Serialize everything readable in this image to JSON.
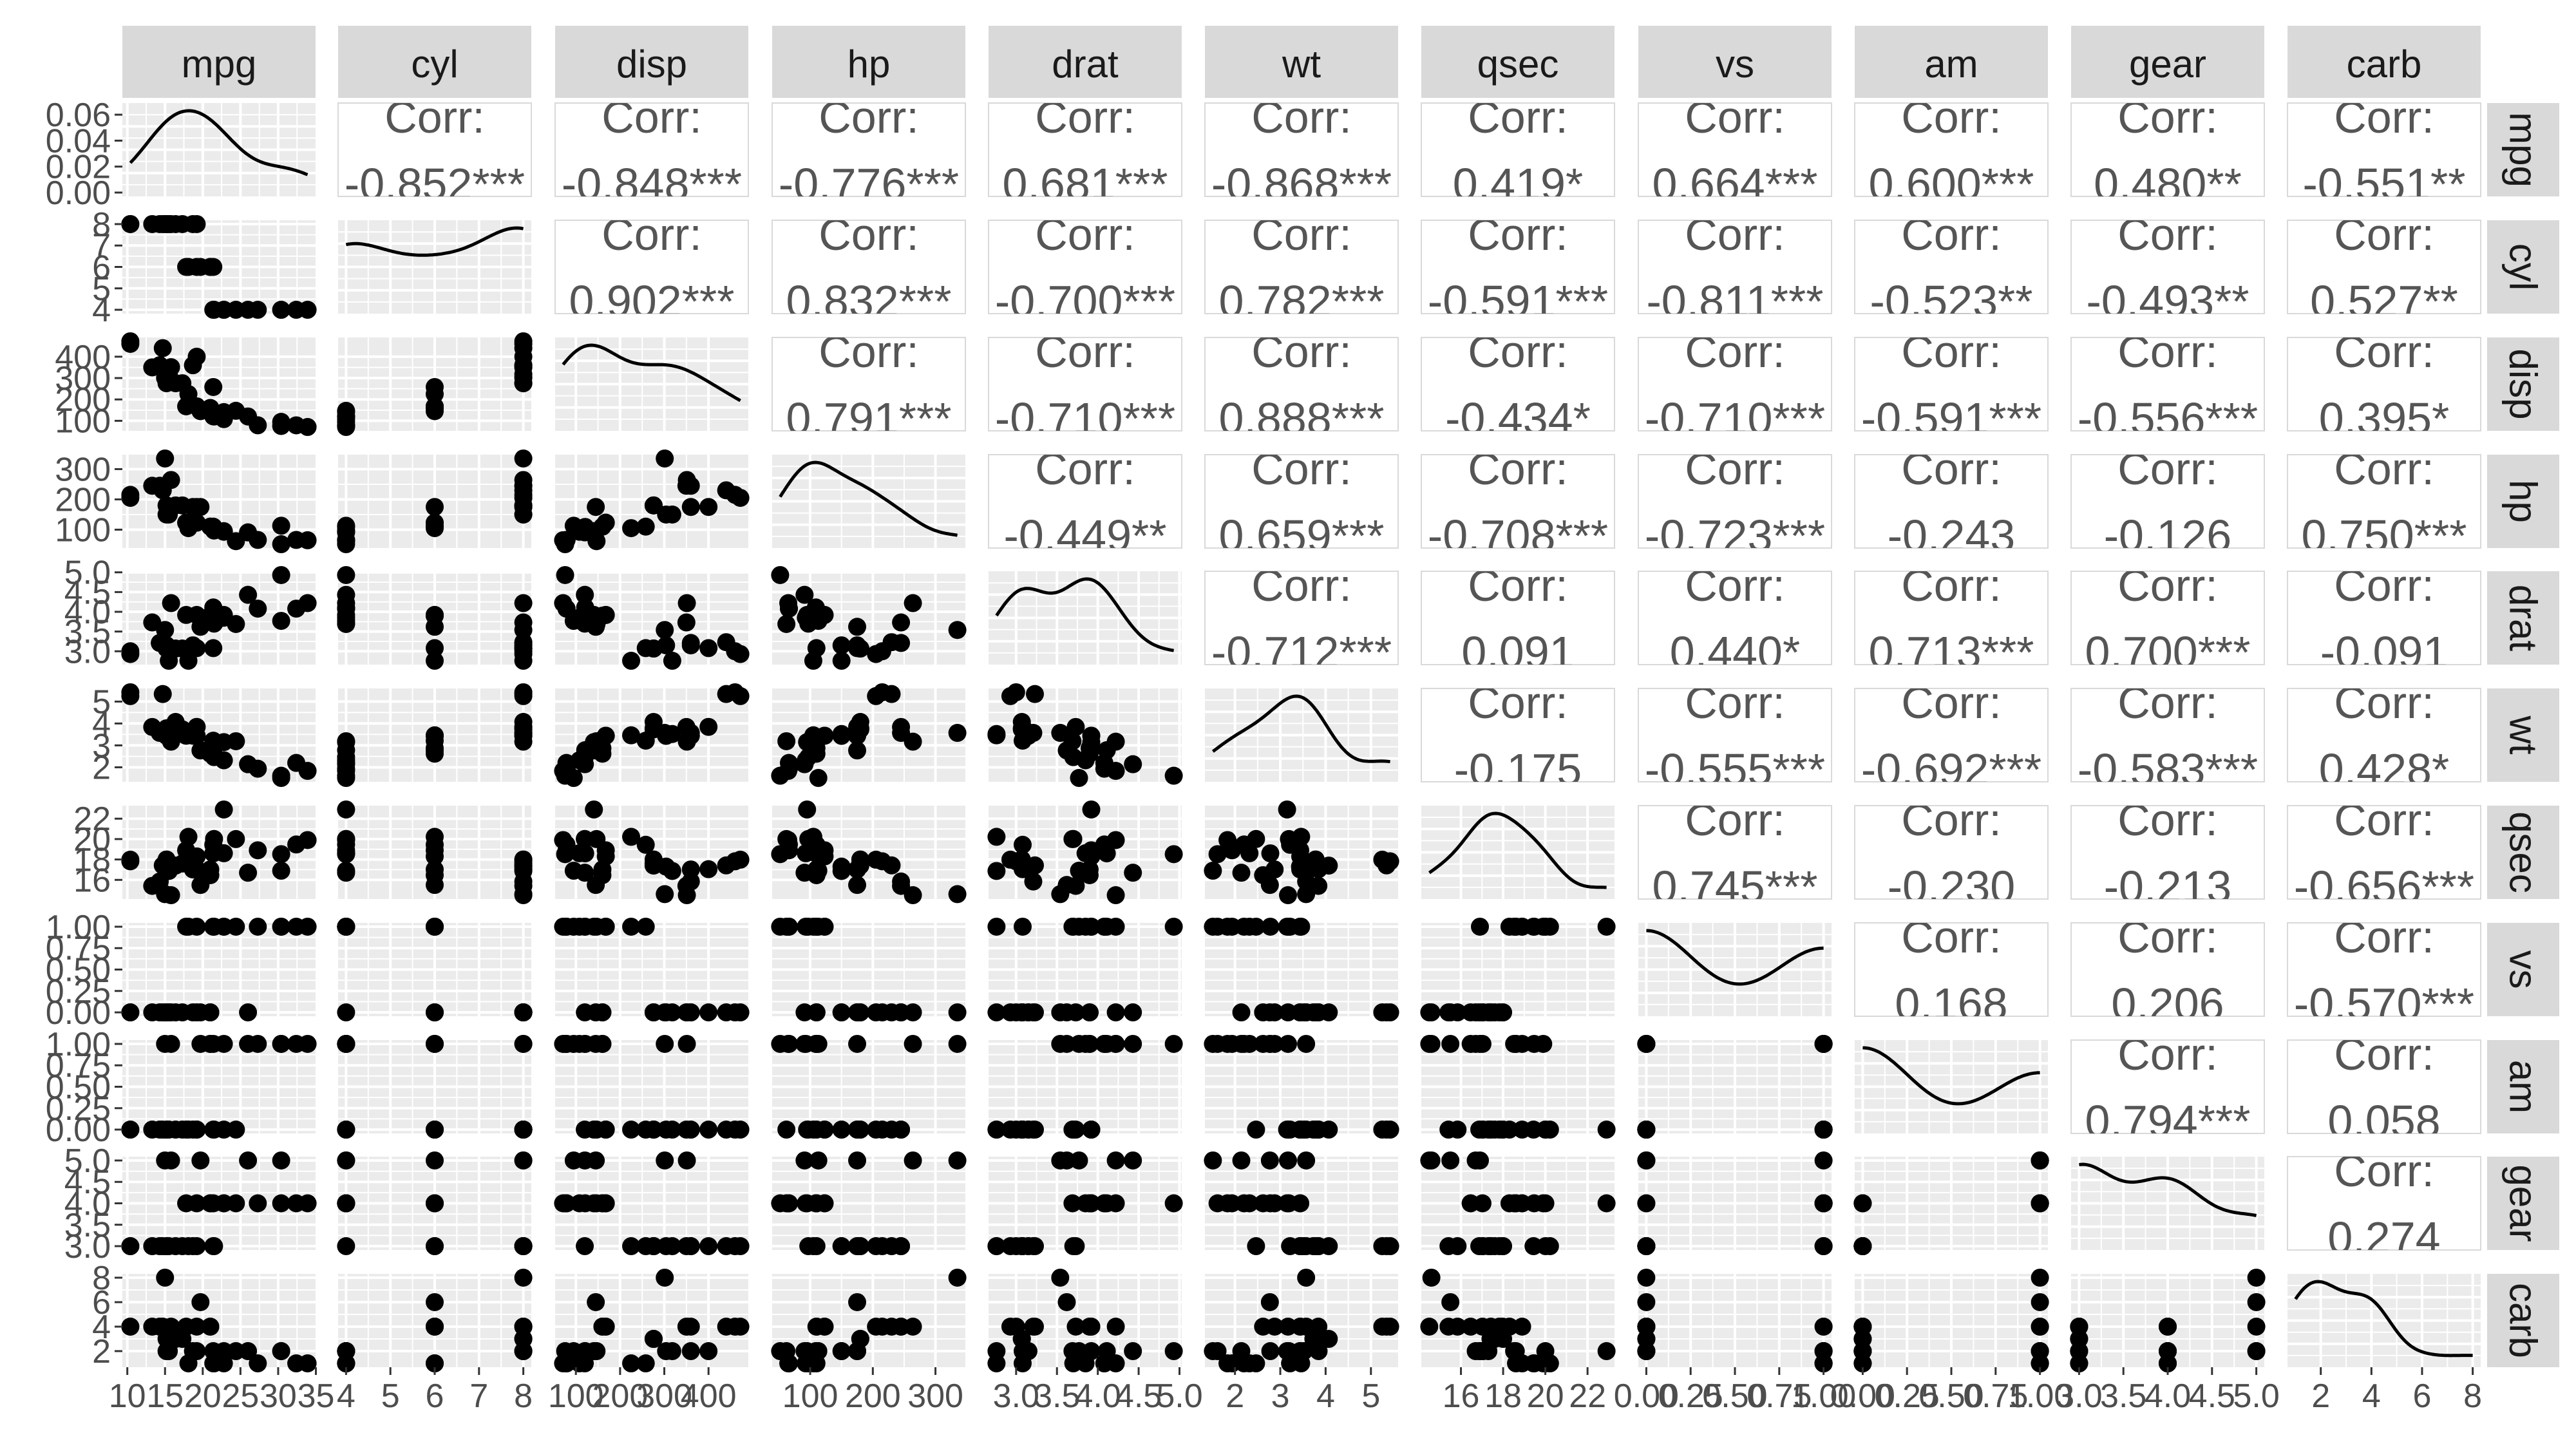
{
  "chart_data": {
    "type": "scatter-matrix",
    "title": "",
    "variables": [
      "mpg",
      "cyl",
      "disp",
      "hp",
      "drat",
      "wt",
      "qsec",
      "vs",
      "am",
      "gear",
      "carb"
    ],
    "corr_label": "Corr:",
    "correlations": {
      "cyl|mpg": "-0.852***",
      "disp|mpg": "-0.848***",
      "hp|mpg": "-0.776***",
      "drat|mpg": "0.681***",
      "wt|mpg": "-0.868***",
      "qsec|mpg": "0.419*",
      "vs|mpg": "0.664***",
      "am|mpg": "0.600***",
      "gear|mpg": "0.480**",
      "carb|mpg": "-0.551**",
      "disp|cyl": "0.902***",
      "hp|cyl": "0.832***",
      "drat|cyl": "-0.700***",
      "wt|cyl": "0.782***",
      "qsec|cyl": "-0.591***",
      "vs|cyl": "-0.811***",
      "am|cyl": "-0.523**",
      "gear|cyl": "-0.493**",
      "carb|cyl": "0.527**",
      "hp|disp": "0.791***",
      "drat|disp": "-0.710***",
      "wt|disp": "0.888***",
      "qsec|disp": "-0.434*",
      "vs|disp": "-0.710***",
      "am|disp": "-0.591***",
      "gear|disp": "-0.556***",
      "carb|disp": "0.395*",
      "drat|hp": "-0.449**",
      "wt|hp": "0.659***",
      "qsec|hp": "-0.708***",
      "vs|hp": "-0.723***",
      "am|hp": "-0.243",
      "gear|hp": "-0.126",
      "carb|hp": "0.750***",
      "wt|drat": "-0.712***",
      "qsec|drat": "0.091",
      "vs|drat": "0.440*",
      "am|drat": "0.713***",
      "gear|drat": "0.700***",
      "carb|drat": "-0.091",
      "qsec|wt": "-0.175",
      "vs|wt": "-0.555***",
      "am|wt": "-0.692***",
      "gear|wt": "-0.583***",
      "carb|wt": "0.428*",
      "vs|qsec": "0.745***",
      "am|qsec": "-0.230",
      "gear|qsec": "-0.213",
      "carb|qsec": "-0.656***",
      "am|vs": "0.168",
      "gear|vs": "0.206",
      "carb|vs": "-0.570***",
      "gear|am": "0.794***",
      "carb|am": "0.058",
      "carb|gear": "0.274"
    },
    "ranges": {
      "mpg": [
        10.4,
        33.9
      ],
      "cyl": [
        4,
        8
      ],
      "disp": [
        71.1,
        472
      ],
      "hp": [
        52,
        335
      ],
      "drat": [
        2.76,
        4.93
      ],
      "wt": [
        1.513,
        5.424
      ],
      "qsec": [
        14.5,
        22.9
      ],
      "vs": [
        0,
        1
      ],
      "am": [
        0,
        1
      ],
      "gear": [
        3,
        5
      ],
      "carb": [
        1,
        8
      ]
    },
    "x_ticks": {
      "mpg": [
        "10",
        "15",
        "20",
        "25",
        "30",
        "35"
      ],
      "cyl": [
        "4",
        "5",
        "6",
        "7",
        "8"
      ],
      "disp": [
        "100",
        "200",
        "300",
        "400"
      ],
      "hp": [
        "100",
        "200",
        "300"
      ],
      "drat": [
        "3.0",
        "3.5",
        "4.0",
        "4.5",
        "5.0"
      ],
      "wt": [
        "2",
        "3",
        "4",
        "5"
      ],
      "qsec": [
        "16",
        "18",
        "20",
        "22"
      ],
      "vs": [
        "0.00",
        "0.25",
        "0.50",
        "0.75",
        "1.00"
      ],
      "am": [
        "0.00",
        "0.25",
        "0.50",
        "0.75",
        "1.00"
      ],
      "gear": [
        "3.0",
        "3.5",
        "4.0",
        "4.5",
        "5.0"
      ],
      "carb": [
        "2",
        "4",
        "6",
        "8"
      ]
    },
    "y_ticks": {
      "mpg": [
        "0.00",
        "0.02",
        "0.04",
        "0.06"
      ],
      "cyl": [
        "4",
        "5",
        "6",
        "7",
        "8"
      ],
      "disp": [
        "100",
        "200",
        "300",
        "400"
      ],
      "hp": [
        "100",
        "200",
        "300"
      ],
      "drat": [
        "3.0",
        "3.5",
        "4.0",
        "4.5",
        "5.0"
      ],
      "wt": [
        "2",
        "3",
        "4",
        "5"
      ],
      "qsec": [
        "16",
        "18",
        "20",
        "22"
      ],
      "vs": [
        "0.00",
        "0.25",
        "0.50",
        "0.75",
        "1.00"
      ],
      "am": [
        "0.00",
        "0.25",
        "0.50",
        "0.75",
        "1.00"
      ],
      "gear": [
        "3.0",
        "3.5",
        "4.0",
        "4.5",
        "5.0"
      ],
      "carb": [
        "2",
        "4",
        "6",
        "8"
      ]
    },
    "observations": {
      "mpg": [
        21,
        21,
        22.8,
        21.4,
        18.7,
        18.1,
        14.3,
        24.4,
        22.8,
        19.2,
        17.8,
        16.4,
        17.3,
        15.2,
        10.4,
        10.4,
        14.7,
        32.4,
        30.4,
        33.9,
        21.5,
        15.5,
        15.2,
        13.3,
        19.2,
        27.3,
        26,
        30.4,
        15.8,
        19.7,
        15,
        21.4
      ],
      "cyl": [
        6,
        6,
        4,
        6,
        8,
        6,
        8,
        4,
        4,
        6,
        6,
        8,
        8,
        8,
        8,
        8,
        8,
        4,
        4,
        4,
        4,
        8,
        8,
        8,
        8,
        4,
        4,
        4,
        8,
        6,
        8,
        4
      ],
      "disp": [
        160,
        160,
        108,
        258,
        360,
        225,
        360,
        146.7,
        140.8,
        167.6,
        167.6,
        275.8,
        275.8,
        275.8,
        472,
        460,
        440,
        78.7,
        75.7,
        71.1,
        120.1,
        318,
        304,
        350,
        400,
        79,
        120.3,
        95.1,
        351,
        145,
        301,
        121
      ],
      "hp": [
        110,
        110,
        93,
        110,
        175,
        105,
        245,
        62,
        95,
        123,
        123,
        180,
        180,
        180,
        205,
        215,
        230,
        66,
        52,
        65,
        97,
        150,
        150,
        245,
        175,
        66,
        91,
        113,
        264,
        175,
        335,
        109
      ],
      "drat": [
        3.9,
        3.9,
        3.85,
        3.08,
        3.15,
        2.76,
        3.21,
        3.69,
        3.92,
        3.92,
        3.92,
        3.07,
        3.07,
        3.07,
        2.93,
        3,
        3.23,
        4.08,
        4.93,
        4.22,
        3.7,
        2.76,
        3.15,
        3.73,
        3.08,
        4.08,
        4.43,
        3.77,
        4.22,
        3.62,
        3.54,
        4.11
      ],
      "wt": [
        2.62,
        2.875,
        2.32,
        3.215,
        3.44,
        3.46,
        3.57,
        3.19,
        3.15,
        3.44,
        3.44,
        4.07,
        3.73,
        3.78,
        5.25,
        5.424,
        5.345,
        2.2,
        1.615,
        1.835,
        2.465,
        3.52,
        3.435,
        3.84,
        3.845,
        1.935,
        2.14,
        1.513,
        3.17,
        2.77,
        3.57,
        2.78
      ],
      "qsec": [
        16.46,
        17.02,
        18.61,
        19.44,
        17.02,
        20.22,
        15.84,
        20,
        22.9,
        18.3,
        18.9,
        17.4,
        17.6,
        18,
        17.98,
        17.82,
        17.42,
        19.47,
        18.52,
        19.9,
        20.01,
        16.87,
        17.3,
        15.41,
        17.05,
        18.9,
        16.7,
        16.9,
        14.5,
        15.5,
        14.6,
        18.6
      ],
      "vs": [
        0,
        0,
        1,
        1,
        0,
        1,
        0,
        1,
        1,
        1,
        1,
        0,
        0,
        0,
        0,
        0,
        0,
        1,
        1,
        1,
        1,
        0,
        0,
        0,
        0,
        1,
        0,
        1,
        0,
        0,
        0,
        1
      ],
      "am": [
        1,
        1,
        1,
        0,
        0,
        0,
        0,
        0,
        0,
        0,
        0,
        0,
        0,
        0,
        0,
        0,
        0,
        1,
        1,
        1,
        0,
        0,
        0,
        0,
        0,
        1,
        1,
        1,
        1,
        1,
        1,
        1
      ],
      "gear": [
        4,
        4,
        4,
        3,
        3,
        3,
        3,
        4,
        4,
        4,
        4,
        3,
        3,
        3,
        3,
        3,
        3,
        4,
        4,
        4,
        3,
        3,
        3,
        3,
        3,
        4,
        5,
        5,
        5,
        5,
        5,
        4
      ],
      "carb": [
        4,
        4,
        1,
        1,
        2,
        1,
        4,
        2,
        2,
        4,
        4,
        3,
        3,
        3,
        4,
        4,
        4,
        1,
        2,
        1,
        1,
        2,
        2,
        4,
        2,
        1,
        2,
        2,
        4,
        6,
        8,
        2
      ]
    },
    "diagonal": "density",
    "upper": "correlation",
    "lower": "scatter",
    "grid": true,
    "colors": {
      "panel_bg": "#ebebeb",
      "grid_major": "#ffffff",
      "strip_bg": "#d9d9d9",
      "strip_text": "#1a1a1a",
      "corr_text": "#555555",
      "points": "#000000",
      "ticks": "#4d4d4d"
    }
  }
}
